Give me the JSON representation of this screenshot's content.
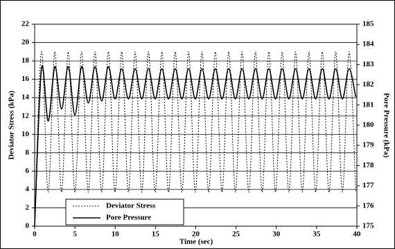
{
  "chart_data": {
    "type": "line",
    "x_label": "Time (sec)",
    "y_label": "Deviator Stress (kPa)",
    "y2_label": "Pore Pressure (kPa)",
    "x": [
      0,
      0.85,
      1.68,
      2.51,
      3.34,
      4.17,
      5.0,
      5.83,
      6.66,
      7.49,
      8.32,
      9.15,
      9.98,
      10.81,
      11.64,
      12.47,
      13.3,
      14.13,
      14.96,
      15.79,
      16.62,
      17.45,
      18.28,
      19.11,
      19.94,
      20.77,
      21.6,
      22.43,
      23.26,
      24.09,
      24.92,
      25.75,
      26.58,
      27.41,
      28.24,
      29.07,
      29.9,
      30.73,
      31.56,
      32.39,
      33.22,
      34.05,
      34.88,
      35.71,
      36.54,
      37.37,
      38.2,
      39.03,
      39.86
    ],
    "series": [
      {
        "name": "Deviator Stress",
        "color": "#000000",
        "dash": true,
        "axis": "y",
        "values": [
          0,
          19,
          3.7,
          19,
          3.7,
          19,
          3.7,
          19,
          3.7,
          19,
          3.7,
          19,
          3.7,
          19,
          3.7,
          19,
          3.7,
          19,
          3.7,
          19,
          3.7,
          19,
          3.7,
          19,
          3.7,
          19,
          3.7,
          19,
          3.7,
          19,
          3.7,
          19,
          3.7,
          19,
          3.7,
          19,
          3.7,
          19,
          3.7,
          19,
          3.7,
          19,
          3.7,
          19,
          3.7,
          19,
          3.7,
          19,
          3.7
        ]
      },
      {
        "name": "Pore Pressure",
        "color": "#000000",
        "dash": false,
        "axis": "y2",
        "values": [
          175,
          182.8,
          180.2,
          182.9,
          180.8,
          182.9,
          180.5,
          182.9,
          181.1,
          182.9,
          181.2,
          182.9,
          181.3,
          182.8,
          181.3,
          182.8,
          181.3,
          182.8,
          181.3,
          182.8,
          181.3,
          182.8,
          181.3,
          182.8,
          181.3,
          182.8,
          181.3,
          182.8,
          181.3,
          182.8,
          181.3,
          182.8,
          181.3,
          182.8,
          181.3,
          182.8,
          181.3,
          182.8,
          181.3,
          182.8,
          181.3,
          182.8,
          181.3,
          182.8,
          181.3,
          182.8,
          181.3,
          182.8,
          181.4
        ]
      }
    ],
    "xlim": [
      0,
      40
    ],
    "xticks": [
      0,
      5,
      10,
      15,
      20,
      25,
      30,
      35,
      40
    ],
    "ylim": [
      0,
      22
    ],
    "yticks": [
      0,
      2,
      4,
      6,
      8,
      10,
      12,
      14,
      16,
      18,
      20,
      22
    ],
    "y2lim": [
      175,
      185
    ],
    "y2ticks": [
      175,
      176,
      177,
      178,
      179,
      180,
      181,
      182,
      183,
      184,
      185
    ],
    "grid": true,
    "legend": "lower left"
  }
}
